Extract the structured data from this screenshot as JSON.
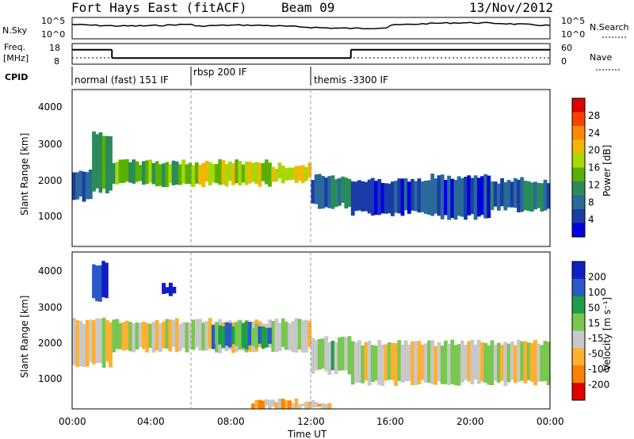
{
  "header": {
    "station": "Fort Hays East (fitACF)",
    "beam": "Beam 09",
    "date": "13/Nov/2012"
  },
  "noise_panel": {
    "left_label": "N.Sky",
    "right_label": "N.Search",
    "left_ticks": [
      "10^5",
      "10^0"
    ],
    "right_ticks": [
      "10^5",
      "10^0"
    ]
  },
  "freq_panel": {
    "left_label_1": "Freq.",
    "left_label_2": "[MHz]",
    "left_ticks": [
      "18",
      "8"
    ],
    "right_ticks": [
      "60",
      "0"
    ],
    "right_label": "Nave"
  },
  "cpid": {
    "label": "CPID",
    "segments": [
      "normal (fast) 151 IF",
      "rbsp 200 IF",
      "themis -3300 IF"
    ]
  },
  "power_colorbar": {
    "label": "Power [dB]",
    "ticks": [
      "28",
      "24",
      "20",
      "16",
      "12",
      "8",
      "4"
    ],
    "colors": [
      "#e00000",
      "#ff4000",
      "#ff8800",
      "#f0b800",
      "#a8d800",
      "#58b000",
      "#2a8c5a",
      "#2a6a9a",
      "#1a3ca8",
      "#0000e0"
    ]
  },
  "velocity_colorbar": {
    "label": "Velocity [m s⁻¹]",
    "ticks": [
      "200",
      "100",
      "50",
      "15",
      "-15",
      "-50",
      "-100",
      "-200"
    ],
    "colors": [
      "#1020c8",
      "#2a5ac8",
      "#1e9e4a",
      "#78c850",
      "#c8c8c8",
      "#ffb030",
      "#ff8000",
      "#e00000"
    ]
  },
  "axes": {
    "ylabel": "Slant Range [km]",
    "yticks": [
      "4000",
      "3000",
      "2000",
      "1000"
    ],
    "xlabel": "Time UT",
    "xticks": [
      "00:00",
      "04:00",
      "08:00",
      "12:00",
      "16:00",
      "20:00",
      "00:00"
    ]
  },
  "chart_data": {
    "type": "heatmap",
    "x_range_hours": [
      0,
      24
    ],
    "y_range_km": [
      180,
      4500
    ],
    "cpid_changes_hours": [
      6.0,
      12.0
    ],
    "freq_steps_mhz": [
      {
        "from": 0,
        "to": 2.0,
        "value": 15
      },
      {
        "from": 2.0,
        "to": 14.0,
        "value": 11
      },
      {
        "from": 14.0,
        "to": 24.0,
        "value": 15
      }
    ],
    "power_bands": [
      {
        "from": 0,
        "to": 1.0,
        "top": 2300,
        "bottom": 1500,
        "level": 8
      },
      {
        "from": 1.0,
        "to": 2.0,
        "top": 3300,
        "bottom": 1700,
        "level": 6
      },
      {
        "from": 2.0,
        "to": 6.0,
        "top": 2500,
        "bottom": 1900,
        "level": 5
      },
      {
        "from": 6.0,
        "to": 10.0,
        "top": 2500,
        "bottom": 1900,
        "level": 4
      },
      {
        "from": 10.0,
        "to": 12.0,
        "top": 2400,
        "bottom": 2000,
        "level": 4
      },
      {
        "from": 12.0,
        "to": 14.0,
        "top": 2100,
        "bottom": 1300,
        "level": 7
      },
      {
        "from": 14.0,
        "to": 18.0,
        "top": 2000,
        "bottom": 1100,
        "level": 8
      },
      {
        "from": 18.0,
        "to": 21.0,
        "top": 2100,
        "bottom": 1000,
        "level": 8
      },
      {
        "from": 21.0,
        "to": 24.0,
        "top": 2000,
        "bottom": 1200,
        "level": 7
      }
    ],
    "velocity_bands": [
      {
        "from": 0,
        "to": 2.0,
        "top": 2600,
        "bottom": 1400,
        "level": 4
      },
      {
        "from": 1.0,
        "to": 1.8,
        "top": 4200,
        "bottom": 3200,
        "level": 0
      },
      {
        "from": 2.0,
        "to": 6.0,
        "top": 2600,
        "bottom": 1800,
        "level": 4
      },
      {
        "from": 4.5,
        "to": 5.2,
        "top": 3600,
        "bottom": 3300,
        "level": 0
      },
      {
        "from": 6.0,
        "to": 12.0,
        "top": 2600,
        "bottom": 1800,
        "level": 4
      },
      {
        "from": 7.0,
        "to": 10.0,
        "top": 2500,
        "bottom": 1900,
        "level": 2
      },
      {
        "from": 12.0,
        "to": 14.0,
        "top": 2100,
        "bottom": 1200,
        "level": 3
      },
      {
        "from": 14.0,
        "to": 24.0,
        "top": 2000,
        "bottom": 900,
        "level": 4
      },
      {
        "from": 9.0,
        "to": 13.0,
        "top": 400,
        "bottom": 180,
        "level": 5
      }
    ]
  }
}
